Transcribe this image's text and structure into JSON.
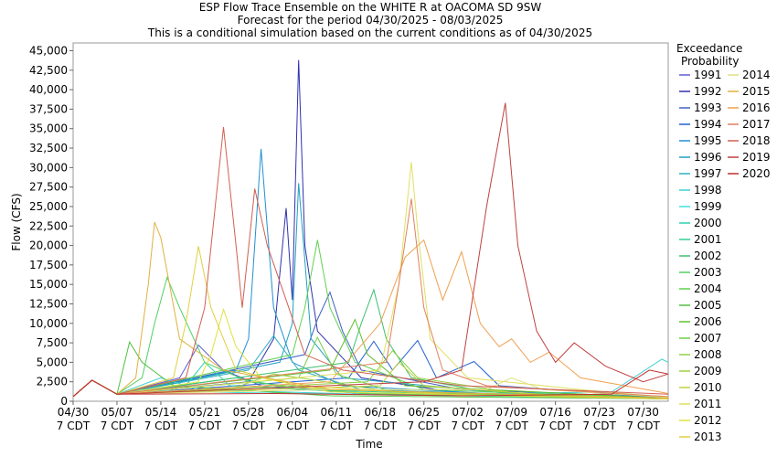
{
  "chart_data": {
    "type": "line",
    "title": "ESP Flow Trace Ensemble on the WHITE R at OACOMA SD 9SW",
    "subtitle": "Forecast for the period 04/30/2025 - 08/03/2025",
    "note": "This is a conditional simulation based on the current conditions as of 04/30/2025",
    "x_label": "Time",
    "y_label": "Flow (CFS)",
    "legend_title": "Exceedance Probability",
    "xlim": [
      "04/30",
      "08/03"
    ],
    "ylim": [
      0,
      46000
    ],
    "xticks": [
      {
        "value": "04/30",
        "label": "04/30 7 CDT"
      },
      {
        "value": "05/07",
        "label": "05/07 7 CDT"
      },
      {
        "value": "05/14",
        "label": "05/14 7 CDT"
      },
      {
        "value": "05/21",
        "label": "05/21 7 CDT"
      },
      {
        "value": "05/28",
        "label": "05/28 7 CDT"
      },
      {
        "value": "06/04",
        "label": "06/04 7 CDT"
      },
      {
        "value": "06/11",
        "label": "06/11 7 CDT"
      },
      {
        "value": "06/18",
        "label": "06/18 7 CDT"
      },
      {
        "value": "06/25",
        "label": "06/25 7 CDT"
      },
      {
        "value": "07/02",
        "label": "07/02 7 CDT"
      },
      {
        "value": "07/09",
        "label": "07/09 7 CDT"
      },
      {
        "value": "07/16",
        "label": "07/16 7 CDT"
      },
      {
        "value": "07/23",
        "label": "07/23 7 CDT"
      },
      {
        "value": "07/30",
        "label": "07/30 7 CDT"
      }
    ],
    "yticks": [
      0,
      {
        "value": 2500,
        "label": "2,500"
      },
      {
        "value": 5000,
        "label": "5,000"
      },
      {
        "value": 7500,
        "label": "7,500"
      },
      {
        "value": 10000,
        "label": "10,000"
      },
      {
        "value": 12500,
        "label": "12,500"
      },
      {
        "value": 15000,
        "label": "15,000"
      },
      {
        "value": 17500,
        "label": "17,500"
      },
      {
        "value": 20000,
        "label": "20,000"
      },
      {
        "value": 22500,
        "label": "22,500"
      },
      {
        "value": 25000,
        "label": "25,000"
      },
      {
        "value": 27500,
        "label": "27,500"
      },
      {
        "value": 30000,
        "label": "30,000"
      },
      {
        "value": 32500,
        "label": "32,500"
      },
      {
        "value": 35000,
        "label": "35,000"
      },
      {
        "value": 37500,
        "label": "37,500"
      },
      {
        "value": 40000,
        "label": "40,000"
      },
      {
        "value": 42500,
        "label": "42,500"
      },
      {
        "value": 45000,
        "label": "45,000"
      }
    ],
    "series": [
      {
        "name": "1991",
        "color": "#6060d0",
        "x": [
          "04/30",
          "05/03",
          "05/07",
          "05/17",
          "05/20",
          "05/24",
          "05/30",
          "06/15",
          "08/03"
        ],
        "values": [
          600,
          2700,
          900,
          3000,
          7200,
          4000,
          2000,
          1000,
          300
        ]
      },
      {
        "name": "1992",
        "color": "#3030b0",
        "x": [
          "04/30",
          "05/03",
          "05/07",
          "05/28",
          "06/01",
          "06/03",
          "06/04",
          "06/05",
          "06/06",
          "06/08",
          "06/15",
          "07/01",
          "08/03"
        ],
        "values": [
          600,
          2700,
          900,
          2500,
          8000,
          24800,
          13000,
          43800,
          20000,
          9000,
          3000,
          1000,
          400
        ]
      },
      {
        "name": "1993",
        "color": "#4060c0",
        "x": [
          "04/30",
          "05/03",
          "05/07",
          "06/06",
          "06/08",
          "06/10",
          "06/12",
          "06/15",
          "07/01",
          "08/03"
        ],
        "values": [
          600,
          2700,
          900,
          6000,
          10500,
          14000,
          9000,
          4000,
          1500,
          500
        ]
      },
      {
        "name": "1994",
        "color": "#2060d0",
        "x": [
          "04/30",
          "05/03",
          "05/07",
          "06/13",
          "06/17",
          "06/20",
          "06/24",
          "06/27",
          "07/03",
          "07/07",
          "08/03"
        ],
        "values": [
          600,
          2700,
          900,
          3000,
          7700,
          4000,
          7800,
          3000,
          5100,
          2000,
          400
        ]
      },
      {
        "name": "1995",
        "color": "#2090d0",
        "x": [
          "04/30",
          "05/03",
          "05/07",
          "05/26",
          "05/28",
          "05/30",
          "06/01",
          "06/04",
          "06/12",
          "07/10",
          "08/03"
        ],
        "values": [
          600,
          2700,
          900,
          4000,
          8000,
          32400,
          12000,
          5000,
          2000,
          800,
          300
        ]
      },
      {
        "name": "1996",
        "color": "#20a0c0",
        "x": [
          "04/30",
          "05/03",
          "05/07",
          "06/02",
          "06/04",
          "06/05",
          "06/07",
          "06/12",
          "07/10",
          "08/03"
        ],
        "values": [
          600,
          2700,
          900,
          5000,
          10000,
          28000,
          8000,
          3000,
          900,
          300
        ]
      },
      {
        "name": "1997",
        "color": "#30b0c0",
        "x": [
          "04/30",
          "05/03",
          "05/07",
          "05/28",
          "06/01",
          "06/05",
          "06/15",
          "08/03"
        ],
        "values": [
          600,
          2700,
          900,
          4000,
          8400,
          4000,
          1500,
          300
        ]
      },
      {
        "name": "1998",
        "color": "#40d0d0",
        "x": [
          "04/30",
          "05/03",
          "05/07",
          "05/14",
          "05/20",
          "06/20",
          "07/25",
          "08/02",
          "08/03"
        ],
        "values": [
          600,
          2700,
          900,
          3000,
          1500,
          800,
          1200,
          5400,
          5000
        ]
      },
      {
        "name": "1999",
        "color": "#40e0e0",
        "x": [
          "04/30",
          "05/03",
          "05/07",
          "05/10",
          "05/20",
          "06/30",
          "08/03"
        ],
        "values": [
          600,
          2700,
          900,
          1500,
          1200,
          700,
          300
        ]
      },
      {
        "name": "2000",
        "color": "#30d0b0",
        "x": [
          "04/30",
          "05/03",
          "05/07",
          "05/18",
          "05/21",
          "05/25",
          "06/20",
          "08/03"
        ],
        "values": [
          600,
          2700,
          900,
          2000,
          5000,
          2000,
          900,
          300
        ]
      },
      {
        "name": "2001",
        "color": "#30d090",
        "x": [
          "04/30",
          "05/03",
          "05/07",
          "05/26",
          "06/05",
          "07/10",
          "08/03"
        ],
        "values": [
          600,
          2700,
          900,
          3000,
          1500,
          700,
          300
        ]
      },
      {
        "name": "2002",
        "color": "#40c070",
        "x": [
          "04/30",
          "05/03",
          "05/07",
          "06/13",
          "06/15",
          "06/17",
          "06/19",
          "06/23",
          "07/05",
          "08/03"
        ],
        "values": [
          600,
          2700,
          900,
          5000,
          10000,
          14300,
          8000,
          3000,
          1200,
          400
        ]
      },
      {
        "name": "2003",
        "color": "#50d060",
        "x": [
          "04/30",
          "05/03",
          "05/07",
          "05/11",
          "05/13",
          "05/15",
          "05/17",
          "05/21",
          "05/28",
          "06/15",
          "08/03"
        ],
        "values": [
          600,
          2700,
          900,
          3000,
          10000,
          15900,
          12000,
          5000,
          2500,
          1000,
          300
        ]
      },
      {
        "name": "2004",
        "color": "#60d050",
        "x": [
          "04/30",
          "05/03",
          "05/07",
          "06/04",
          "06/06",
          "06/08",
          "06/10",
          "06/14",
          "06/25",
          "08/03"
        ],
        "values": [
          600,
          2700,
          900,
          6000,
          12000,
          20700,
          12000,
          5000,
          1500,
          400
        ]
      },
      {
        "name": "2005",
        "color": "#50c040",
        "x": [
          "04/30",
          "05/03",
          "05/07",
          "05/09",
          "05/11",
          "05/16",
          "06/10",
          "08/03"
        ],
        "values": [
          600,
          2700,
          900,
          7600,
          5000,
          2000,
          700,
          300
        ]
      },
      {
        "name": "2006",
        "color": "#60c030",
        "x": [
          "04/30",
          "05/03",
          "05/07",
          "06/10",
          "06/14",
          "06/16",
          "06/22",
          "08/03"
        ],
        "values": [
          600,
          2700,
          900,
          4000,
          10500,
          6000,
          2000,
          400
        ]
      },
      {
        "name": "2007",
        "color": "#70d040",
        "x": [
          "04/30",
          "05/03",
          "05/07",
          "06/05",
          "06/08",
          "06/11",
          "06/20",
          "08/03"
        ],
        "values": [
          600,
          2700,
          900,
          3000,
          8200,
          3500,
          1200,
          300
        ]
      },
      {
        "name": "2008",
        "color": "#90d040",
        "x": [
          "04/30",
          "05/03",
          "05/07",
          "06/16",
          "06/20",
          "06/24",
          "07/10",
          "08/03"
        ],
        "values": [
          600,
          2700,
          900,
          2500,
          6500,
          3000,
          1000,
          300
        ]
      },
      {
        "name": "2009",
        "color": "#a0d040",
        "x": [
          "04/30",
          "05/03",
          "05/07",
          "05/25",
          "06/01",
          "06/20",
          "08/03"
        ],
        "values": [
          600,
          2700,
          900,
          1500,
          3500,
          1200,
          400
        ]
      },
      {
        "name": "2010",
        "color": "#c0d040",
        "x": [
          "04/30",
          "05/03",
          "05/07",
          "06/18",
          "06/21",
          "06/25",
          "07/15",
          "08/03"
        ],
        "values": [
          600,
          2700,
          900,
          2000,
          5000,
          2000,
          800,
          300
        ]
      },
      {
        "name": "2011",
        "color": "#e0e060",
        "x": [
          "04/30",
          "05/03",
          "05/07",
          "06/18",
          "06/21",
          "06/23",
          "06/24",
          "06/26",
          "07/02",
          "07/20",
          "08/03"
        ],
        "values": [
          600,
          2700,
          900,
          4000,
          15000,
          30700,
          22000,
          8000,
          3000,
          1500,
          500
        ]
      },
      {
        "name": "2012",
        "color": "#e0e040",
        "x": [
          "04/30",
          "05/03",
          "05/07",
          "05/20",
          "05/22",
          "05/24",
          "05/26",
          "05/30",
          "06/10",
          "08/03"
        ],
        "values": [
          600,
          2700,
          900,
          2500,
          6000,
          11800,
          7000,
          3000,
          1200,
          300
        ]
      },
      {
        "name": "2013",
        "color": "#e0d040",
        "x": [
          "04/30",
          "05/03",
          "05/07",
          "05/16",
          "05/18",
          "05/20",
          "05/22",
          "05/26",
          "06/05",
          "07/01",
          "08/03"
        ],
        "values": [
          600,
          2700,
          900,
          3000,
          10000,
          19900,
          12000,
          4000,
          2000,
          800,
          300
        ]
      },
      {
        "name": "2014",
        "color": "#e0e080",
        "x": [
          "04/30",
          "05/03",
          "05/07",
          "06/10",
          "07/05",
          "07/09",
          "07/14",
          "08/03"
        ],
        "values": [
          600,
          2700,
          900,
          1500,
          1500,
          3000,
          1500,
          500
        ]
      },
      {
        "name": "2015",
        "color": "#e0b040",
        "x": [
          "04/30",
          "05/03",
          "05/07",
          "05/10",
          "05/12",
          "05/13",
          "05/14",
          "05/17",
          "05/24",
          "06/10",
          "08/03"
        ],
        "values": [
          600,
          2700,
          900,
          3000,
          15000,
          23000,
          21000,
          8000,
          4000,
          1500,
          400
        ]
      },
      {
        "name": "2016",
        "color": "#f0a050",
        "x": [
          "04/30",
          "05/03",
          "05/07",
          "06/10",
          "06/18",
          "06/22",
          "06/25",
          "06/28",
          "07/01",
          "07/04",
          "07/07",
          "07/09",
          "07/12",
          "07/15",
          "07/20",
          "08/03"
        ],
        "values": [
          600,
          2700,
          900,
          2500,
          10000,
          18500,
          20700,
          13000,
          19200,
          10000,
          7000,
          8000,
          5000,
          6300,
          3000,
          1000
        ]
      },
      {
        "name": "2017",
        "color": "#e08060",
        "x": [
          "04/30",
          "05/03",
          "05/07",
          "06/19",
          "06/21",
          "06/23",
          "06/25",
          "06/28",
          "07/05",
          "08/03"
        ],
        "values": [
          600,
          2700,
          900,
          5000,
          15000,
          26000,
          12000,
          4000,
          2000,
          600
        ]
      },
      {
        "name": "2018",
        "color": "#d06050",
        "x": [
          "04/30",
          "05/03",
          "05/07",
          "05/18",
          "05/21",
          "05/24",
          "05/26",
          "05/27",
          "05/29",
          "05/31",
          "06/03",
          "06/06",
          "06/12",
          "07/01",
          "08/03"
        ],
        "values": [
          600,
          2700,
          900,
          3000,
          12000,
          35200,
          20000,
          12000,
          27300,
          20000,
          13000,
          6000,
          4000,
          2000,
          900
        ]
      },
      {
        "name": "2019",
        "color": "#c04040",
        "x": [
          "04/30",
          "05/03",
          "05/07",
          "06/25",
          "07/01",
          "07/05",
          "07/08",
          "07/10",
          "07/13",
          "07/16",
          "07/19",
          "07/24",
          "07/30",
          "08/03"
        ],
        "values": [
          600,
          2700,
          900,
          2500,
          4000,
          25000,
          38300,
          20000,
          9000,
          5000,
          7500,
          4500,
          2500,
          3500
        ]
      },
      {
        "name": "2020",
        "color": "#c03030",
        "x": [
          "04/30",
          "05/03",
          "05/07",
          "06/01",
          "07/01",
          "07/25",
          "07/31",
          "08/03"
        ],
        "values": [
          600,
          2700,
          900,
          1000,
          700,
          900,
          4000,
          3500
        ]
      }
    ]
  }
}
